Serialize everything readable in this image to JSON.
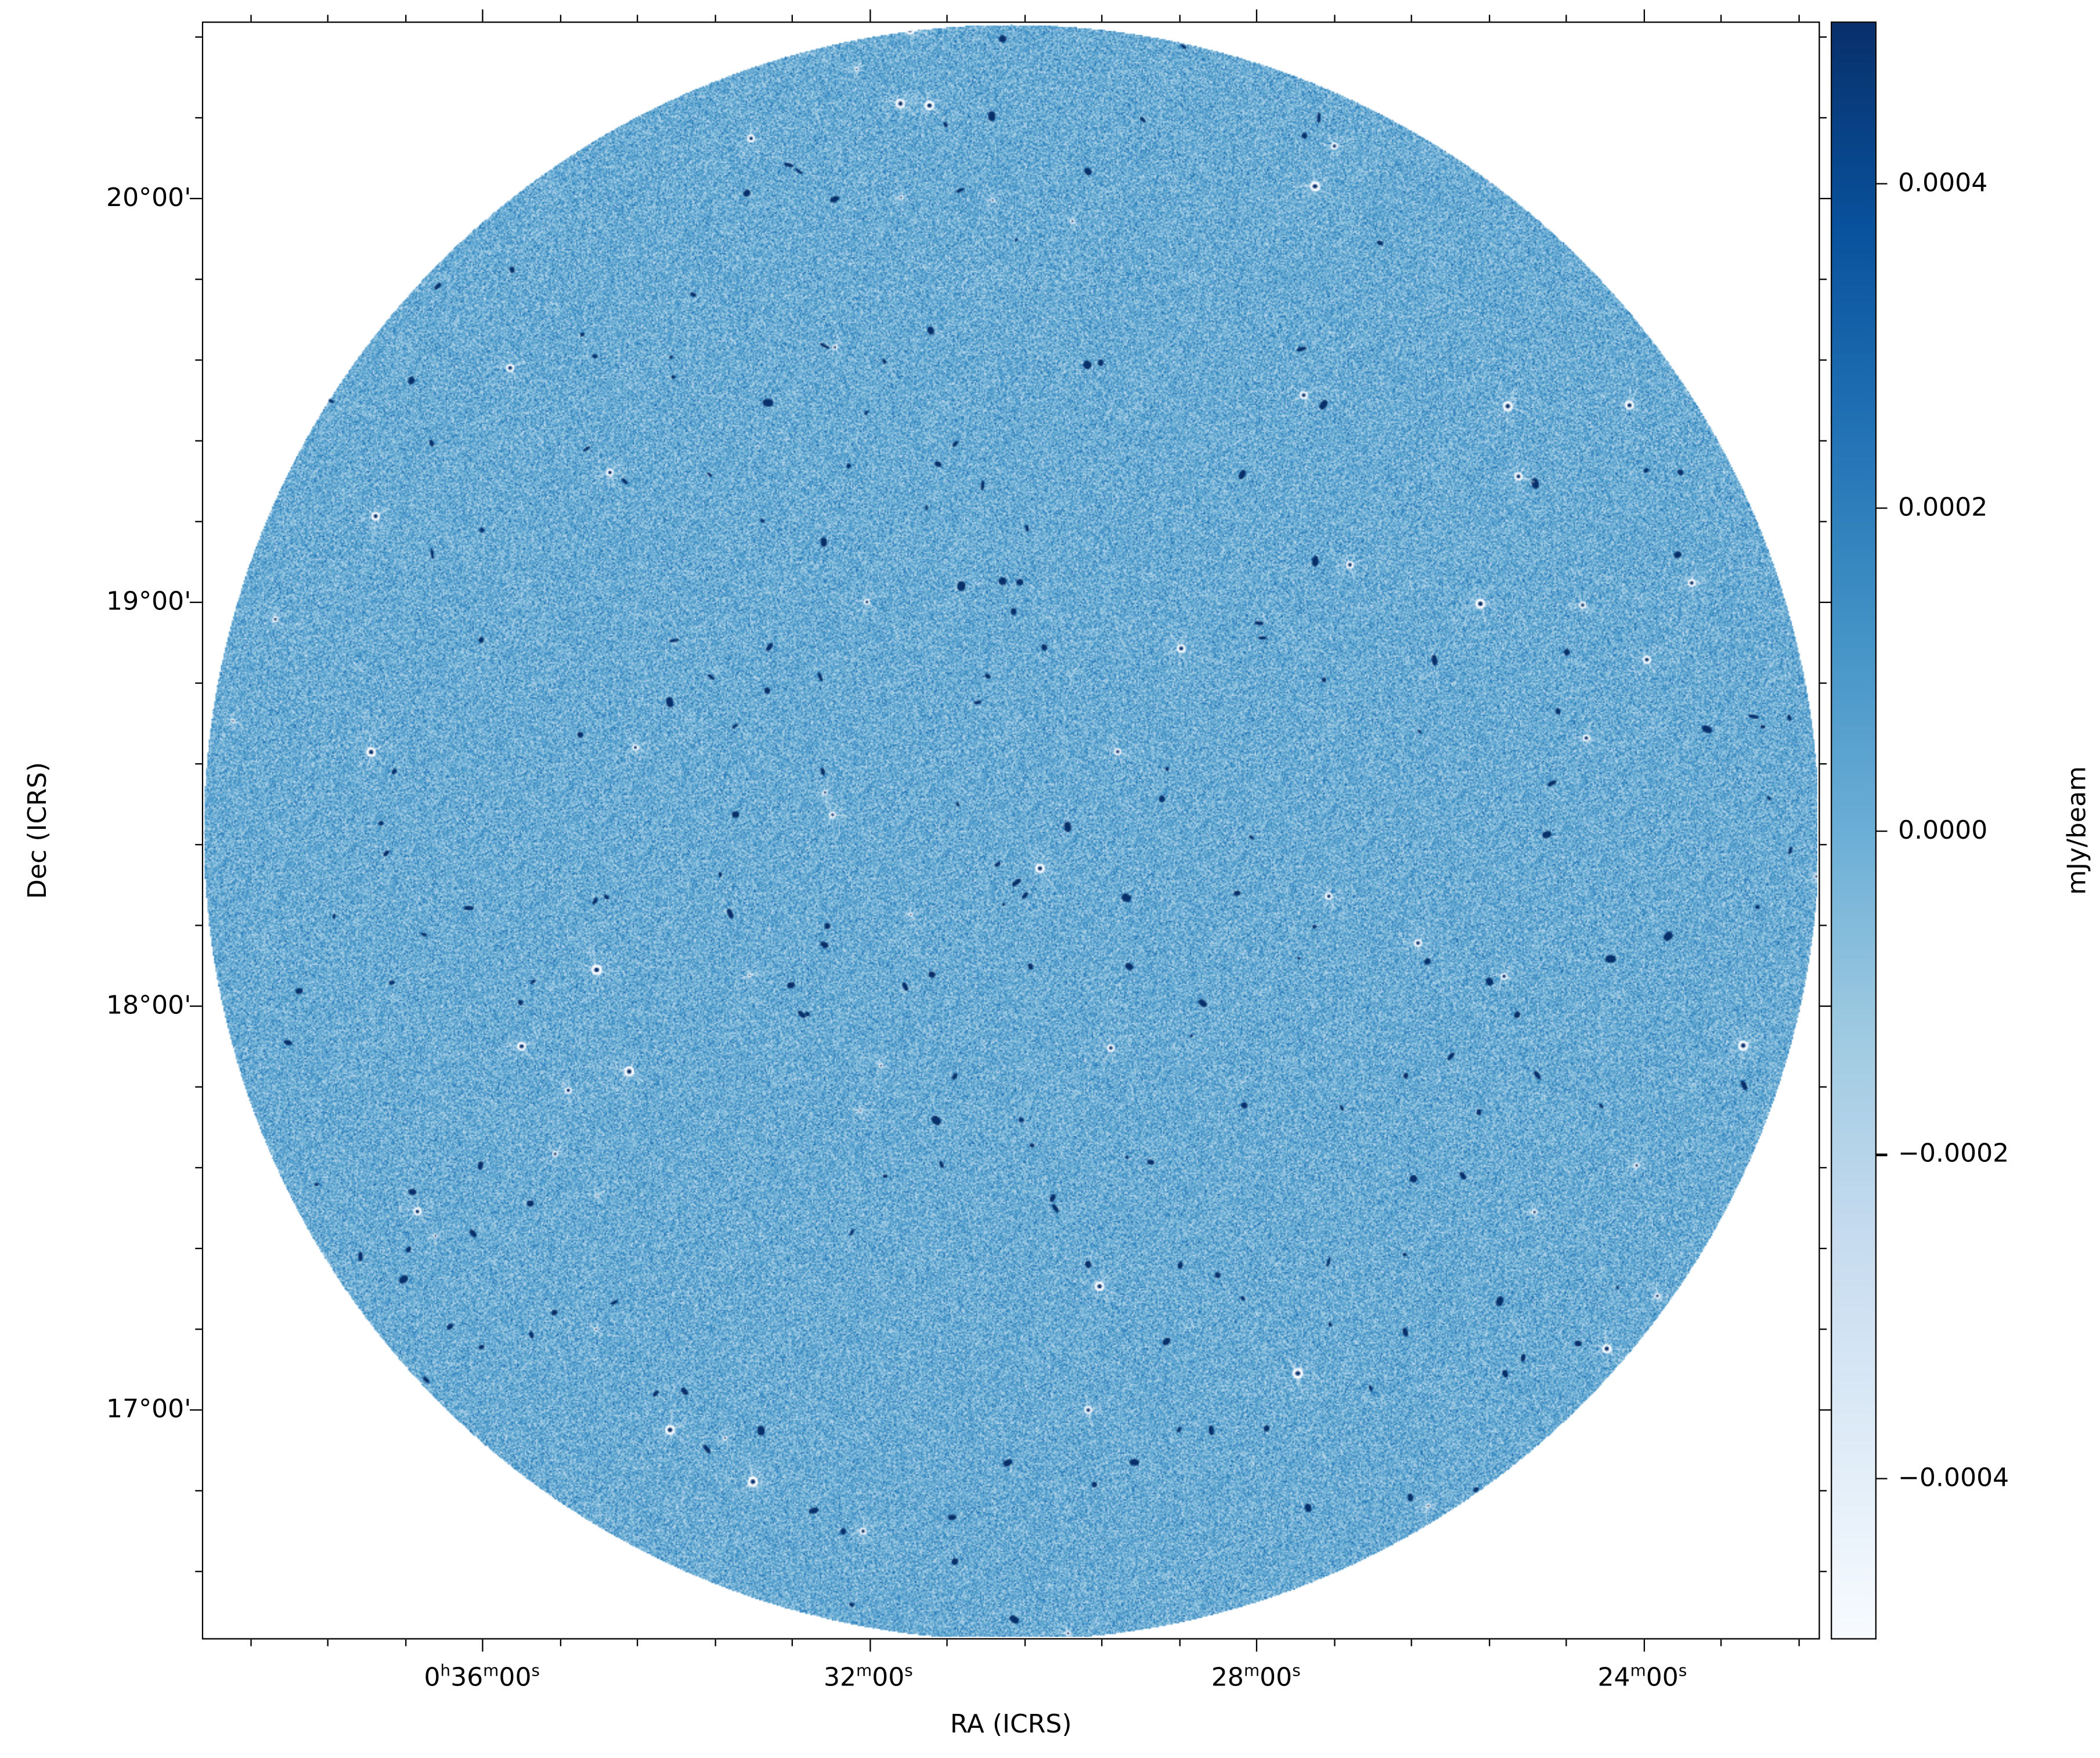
{
  "chart_data": {
    "type": "heatmap",
    "title": "",
    "xlabel": "RA (ICRS)",
    "ylabel": "Dec (ICRS)",
    "colorbar_label": "mJy/beam",
    "colormap": "Blues",
    "colorbar_range": [
      -0.0005,
      0.0005
    ],
    "colorbar_ticks": [
      "0.0004",
      "0.0002",
      "0.0000",
      "−0.0002",
      "−0.0004"
    ],
    "colorbar_tick_values": [
      0.0004,
      0.0002,
      0.0,
      -0.0002,
      -0.0004
    ],
    "x_ticks": [
      {
        "h": "0",
        "m": "36",
        "s": "00",
        "show_h": true
      },
      {
        "h": "",
        "m": "32",
        "s": "00",
        "show_h": false
      },
      {
        "h": "",
        "m": "28",
        "s": "00",
        "show_h": false
      },
      {
        "h": "",
        "m": "24",
        "s": "00",
        "show_h": false
      }
    ],
    "y_ticks": [
      "20°00'",
      "19°00'",
      "18°00'",
      "17°00'"
    ],
    "y_tick_values_deg": [
      20,
      19,
      18,
      17
    ],
    "footprint": "circular",
    "grid": false,
    "colors": {
      "background": "#ffffff",
      "field_mean": "#6aaed6",
      "sources": "#08306b",
      "point_sources": "#f7fbff"
    }
  }
}
